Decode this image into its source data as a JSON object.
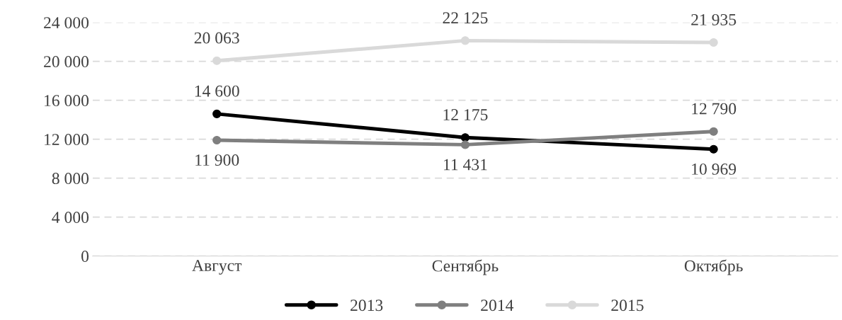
{
  "chart_data": {
    "type": "line",
    "categories": [
      "Август",
      "Сентябрь",
      "Октябрь"
    ],
    "series": [
      {
        "name": "2013",
        "color": "#000000",
        "values": [
          14600,
          12175,
          10969
        ],
        "value_labels": [
          "14 600",
          "12 175",
          "10 969"
        ]
      },
      {
        "name": "2014",
        "color": "#7f7f7f",
        "values": [
          11900,
          11431,
          12790
        ],
        "value_labels": [
          "11 900",
          "11 431",
          "12 790"
        ]
      },
      {
        "name": "2015",
        "color": "#d9d9d9",
        "values": [
          20063,
          22125,
          21935
        ],
        "value_labels": [
          "20 063",
          "22 125",
          "21 935"
        ]
      }
    ],
    "ylim": [
      0,
      24000
    ],
    "yticks": [
      {
        "value": 0,
        "label": "0"
      },
      {
        "value": 4000,
        "label": "4 000"
      },
      {
        "value": 8000,
        "label": "8 000"
      },
      {
        "value": 12000,
        "label": "12 000"
      },
      {
        "value": 16000,
        "label": "16 000"
      },
      {
        "value": 20000,
        "label": "20 000"
      },
      {
        "value": 24000,
        "label": "24 000"
      }
    ],
    "grid": "y",
    "legend": "bottom",
    "marker": "circle",
    "line_style": "solid"
  }
}
